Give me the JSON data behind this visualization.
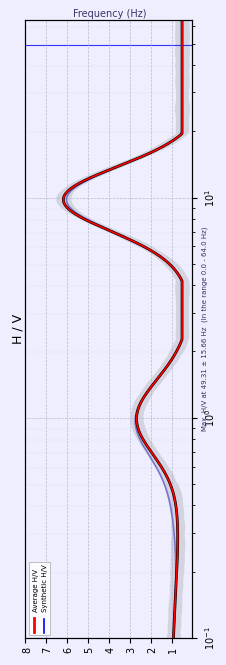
{
  "title": "H / V",
  "ylabel_right": "Frequency (Hz)",
  "annotation": "Max. H/V at 49.31 ± 15.66 Hz  (In the range 0.0 - 64.0 Hz)",
  "legend_labels": [
    "Average H/V",
    "Synthetic H/V"
  ],
  "legend_colors": [
    "red",
    "blue"
  ],
  "avg_color": "red",
  "avg_std_color": "#888888",
  "synth_color": "#7777cc",
  "bg_color": "#eeeeff",
  "grid_color": "#aaaacc",
  "freq_min": 0.1,
  "freq_max": 64.0,
  "hv_min": 0.0,
  "hv_max": 8.0,
  "peak_freq": 49.31,
  "xticks": [
    1,
    2,
    3,
    4,
    5,
    6,
    7,
    8
  ],
  "xtick_labels": [
    "1",
    "2",
    "3",
    "4",
    "5",
    "6",
    "7",
    "8"
  ]
}
